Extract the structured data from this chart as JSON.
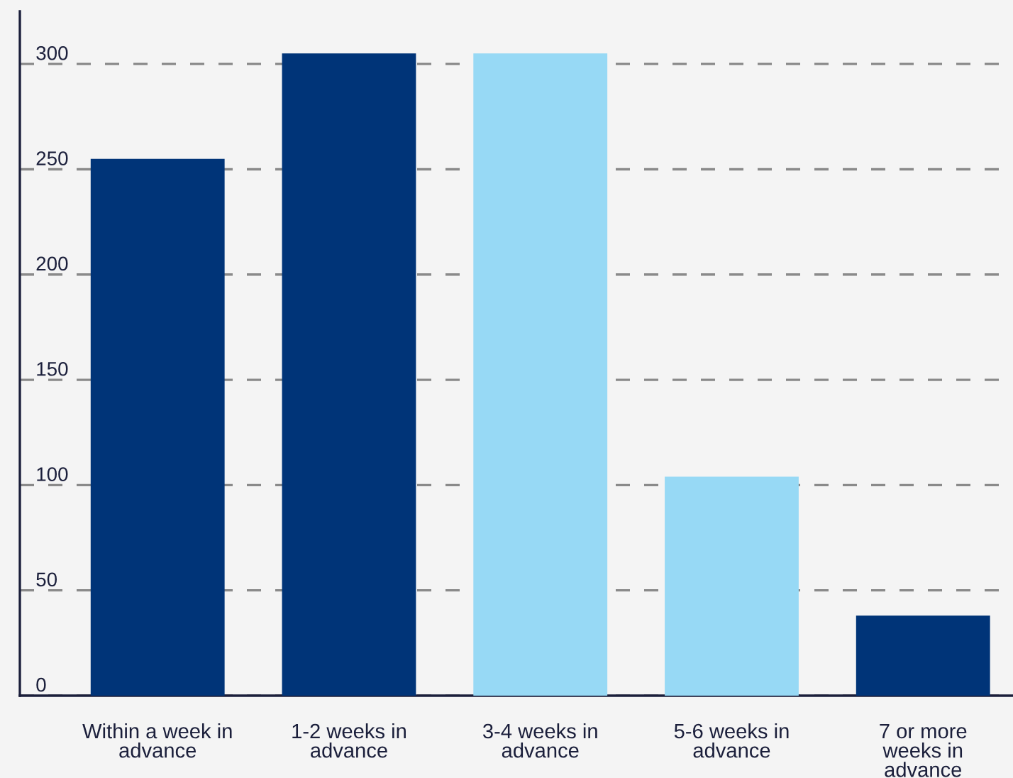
{
  "chart_data": {
    "type": "bar",
    "categories": [
      "Within a week in\nadvance",
      "1-2 weeks in\nadvance",
      "3-4 weeks in\nadvance",
      "5-6 weeks in\nadvance",
      "7 or more\nweeks in\nadvance"
    ],
    "values": [
      255,
      305,
      305,
      104,
      38
    ],
    "colors": [
      "#003478",
      "#003478",
      "#97d9f5",
      "#97d9f5",
      "#003478"
    ],
    "ylim": [
      0,
      325
    ],
    "yticks": [
      0,
      50,
      100,
      150,
      200,
      250,
      300
    ],
    "grid": "y",
    "legend": false
  }
}
